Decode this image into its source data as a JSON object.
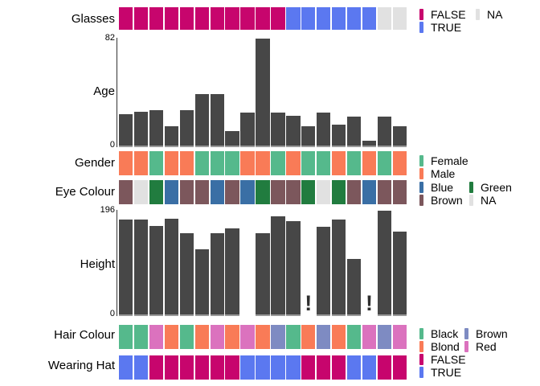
{
  "figure": {
    "background": "#FFFFFF",
    "bar_color": "#474747",
    "na_marker_glyph": "!"
  },
  "chart_data": [
    {
      "key": "glasses",
      "type": "heatmap",
      "row_label": "Glasses",
      "values": [
        "FALSE",
        "FALSE",
        "FALSE",
        "FALSE",
        "FALSE",
        "FALSE",
        "FALSE",
        "FALSE",
        "FALSE",
        "FALSE",
        "FALSE",
        "TRUE",
        "TRUE",
        "TRUE",
        "TRUE",
        "TRUE",
        "TRUE",
        "NA",
        "NA"
      ],
      "colors": {
        "FALSE": "#C7056D",
        "TRUE": "#5B78F0",
        "NA": "#E1E1E1"
      },
      "legend_columns": [
        [
          {
            "label": "FALSE",
            "color": "#C7056D"
          },
          {
            "label": "TRUE",
            "color": "#5B78F0"
          }
        ],
        [
          {
            "label": "NA",
            "color": "#E1E1E1"
          }
        ]
      ]
    },
    {
      "key": "age",
      "type": "bar",
      "row_label": "Age",
      "values": [
        25,
        27,
        28,
        16,
        28,
        40,
        40,
        12,
        26,
        82,
        26,
        24,
        16,
        26,
        17,
        23,
        5,
        23,
        16
      ],
      "ylim": [
        0,
        82
      ],
      "axis_max_label": "82",
      "axis_min_label": "0",
      "na_marker_positions": []
    },
    {
      "key": "gender",
      "type": "heatmap",
      "row_label": "Gender",
      "values": [
        "Male",
        "Male",
        "Female",
        "Male",
        "Male",
        "Female",
        "Female",
        "Female",
        "Male",
        "Male",
        "Female",
        "Male",
        "Female",
        "Female",
        "Male",
        "Female",
        "Male",
        "Female",
        "Male"
      ],
      "colors": {
        "Female": "#55B98C",
        "Male": "#F97B57"
      },
      "legend_columns": [
        [
          {
            "label": "Female",
            "color": "#55B98C"
          },
          {
            "label": "Male",
            "color": "#F97B57"
          }
        ]
      ]
    },
    {
      "key": "eye",
      "type": "heatmap",
      "row_label": "Eye Colour",
      "values": [
        "Brown",
        "NA",
        "Green",
        "Blue",
        "Brown",
        "Brown",
        "Blue",
        "Brown",
        "Blue",
        "Green",
        "Brown",
        "Brown",
        "Green",
        "NA",
        "Green",
        "Brown",
        "Blue",
        "Brown",
        "Brown"
      ],
      "colors": {
        "Blue": "#3A6FA5",
        "Brown": "#7C575C",
        "Green": "#217C3F",
        "NA": "#E1E1E1"
      },
      "legend_columns": [
        [
          {
            "label": "Blue",
            "color": "#3A6FA5"
          },
          {
            "label": "Brown",
            "color": "#7C575C"
          }
        ],
        [
          {
            "label": "Green",
            "color": "#217C3F"
          },
          {
            "label": "NA",
            "color": "#E1E1E1"
          }
        ]
      ]
    },
    {
      "key": "height",
      "type": "bar",
      "row_label": "Height",
      "values": [
        180,
        180,
        168,
        181,
        154,
        124,
        154,
        163,
        null,
        154,
        186,
        177,
        null,
        166,
        180,
        106,
        null,
        196,
        157
      ],
      "ylim": [
        0,
        196
      ],
      "axis_max_label": "196",
      "axis_min_label": "0",
      "na_marker_positions": [
        13,
        17
      ]
    },
    {
      "key": "hair",
      "type": "heatmap",
      "row_label": "Hair Colour",
      "values": [
        "Black",
        "Black",
        "Red",
        "Blond",
        "Black",
        "Blond",
        "Red",
        "Blond",
        "Red",
        "Blond",
        "Brown",
        "Black",
        "Blond",
        "Brown",
        "Blond",
        "Black",
        "Red",
        "Brown",
        "Red"
      ],
      "colors": {
        "Black": "#55B98C",
        "Blond": "#F97B57",
        "Brown": "#7E8BC2",
        "Red": "#DB72BE"
      },
      "legend_columns": [
        [
          {
            "label": "Black",
            "color": "#55B98C"
          },
          {
            "label": "Blond",
            "color": "#F97B57"
          }
        ],
        [
          {
            "label": "Brown",
            "color": "#7E8BC2"
          },
          {
            "label": "Red",
            "color": "#DB72BE"
          }
        ]
      ]
    },
    {
      "key": "hat",
      "type": "heatmap",
      "row_label": "Wearing Hat",
      "values": [
        "TRUE",
        "TRUE",
        "FALSE",
        "FALSE",
        "FALSE",
        "FALSE",
        "FALSE",
        "FALSE",
        "TRUE",
        "TRUE",
        "TRUE",
        "TRUE",
        "FALSE",
        "FALSE",
        "FALSE",
        "TRUE",
        "TRUE",
        "FALSE",
        "FALSE"
      ],
      "colors": {
        "FALSE": "#C7056D",
        "TRUE": "#5B78F0"
      },
      "legend_columns": [
        [
          {
            "label": "FALSE",
            "color": "#C7056D"
          },
          {
            "label": "TRUE",
            "color": "#5B78F0"
          }
        ]
      ]
    }
  ]
}
